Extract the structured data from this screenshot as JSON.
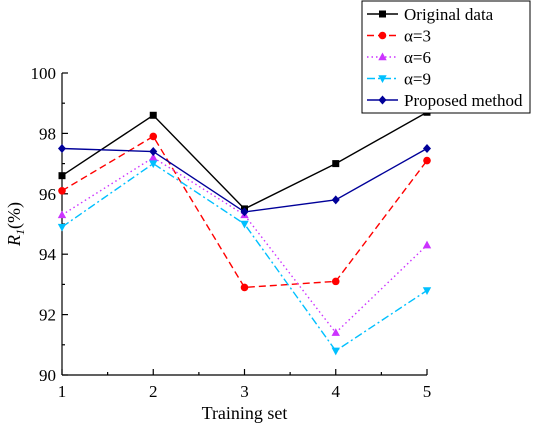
{
  "chart_data": {
    "type": "line",
    "xlabel": "Training set",
    "ylabel_main": "R",
    "ylabel_sub": "1",
    "ylabel_suffix": "(%)",
    "x": [
      1,
      2,
      3,
      4,
      5
    ],
    "xticks": [
      "1",
      "2",
      "3",
      "4",
      "5"
    ],
    "ylim": [
      90,
      100
    ],
    "yticks": [
      "90",
      "92",
      "94",
      "96",
      "98",
      "100"
    ],
    "legend_position": "top-right",
    "series": [
      {
        "name": "Original data",
        "values": [
          96.6,
          98.6,
          95.5,
          97.0,
          98.7
        ],
        "color": "#000000",
        "dash": "solid",
        "marker": "square"
      },
      {
        "name": "α=3",
        "values": [
          96.1,
          97.9,
          92.9,
          93.1,
          97.1
        ],
        "color": "#ff0000",
        "dash": "dashed",
        "marker": "circle"
      },
      {
        "name": "α=6",
        "values": [
          95.3,
          97.2,
          95.3,
          91.4,
          94.3
        ],
        "color": "#cc33ff",
        "dash": "dotted",
        "marker": "triangle-up"
      },
      {
        "name": "α=9",
        "values": [
          94.9,
          97.0,
          95.0,
          90.8,
          92.8
        ],
        "color": "#00c0ff",
        "dash": "dashdot",
        "marker": "triangle-down"
      },
      {
        "name": "Proposed method",
        "values": [
          97.5,
          97.4,
          95.4,
          95.8,
          97.5
        ],
        "color": "#000099",
        "dash": "solid",
        "marker": "diamond"
      }
    ]
  }
}
